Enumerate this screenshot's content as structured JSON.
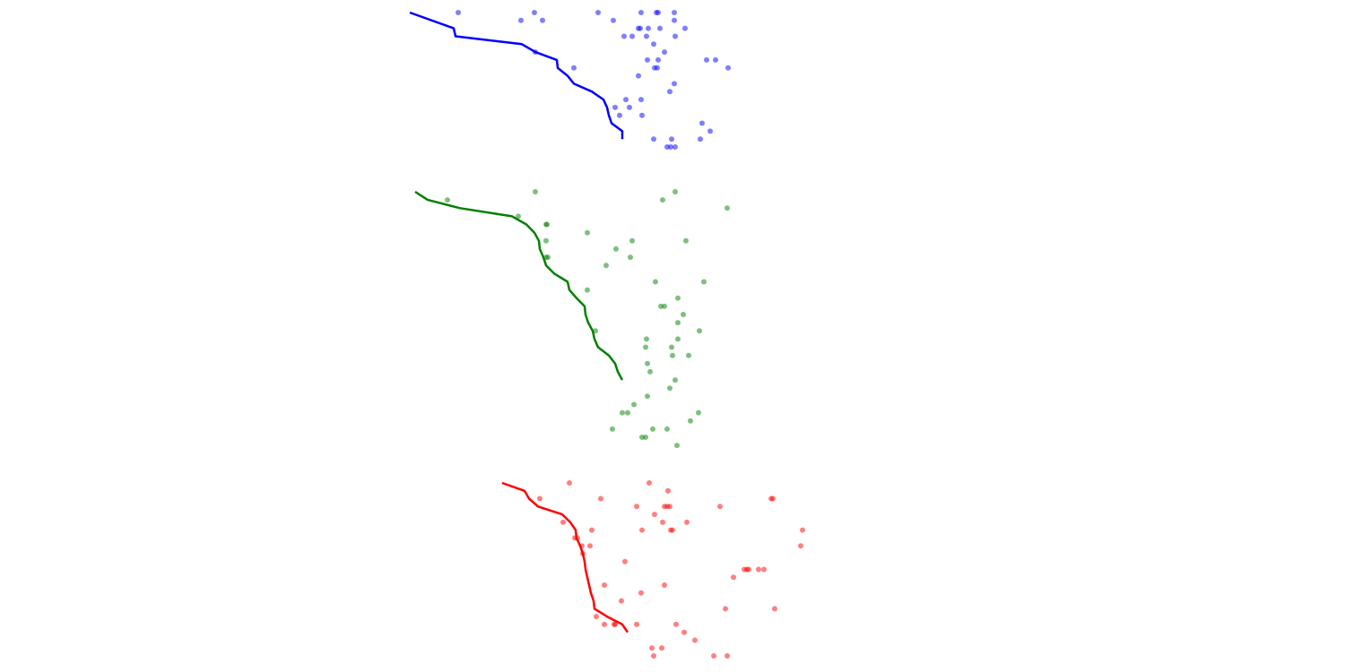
{
  "chart_data": [
    {
      "type": "scatter",
      "color": "#0000ff",
      "axes": "none",
      "grid": false,
      "xlim": [
        457,
        812
      ],
      "ylim": [
        0,
        17
      ],
      "line": [
        [
          457,
          0
        ],
        [
          506,
          2
        ],
        [
          508,
          3
        ],
        [
          582,
          4
        ],
        [
          597,
          5
        ],
        [
          621,
          6
        ],
        [
          622,
          7
        ],
        [
          633,
          8
        ],
        [
          640,
          9
        ],
        [
          660,
          10
        ],
        [
          673,
          11
        ],
        [
          677,
          12
        ],
        [
          679,
          13
        ],
        [
          682,
          14
        ],
        [
          694,
          15
        ],
        [
          694,
          16
        ]
      ],
      "points": [
        [
          511,
          0
        ],
        [
          596,
          0
        ],
        [
          667,
          0
        ],
        [
          715,
          0
        ],
        [
          732,
          0
        ],
        [
          734,
          0
        ],
        [
          752,
          0
        ],
        [
          581,
          1
        ],
        [
          605,
          1
        ],
        [
          684,
          1
        ],
        [
          752,
          1
        ],
        [
          712,
          2
        ],
        [
          714,
          2
        ],
        [
          723,
          2
        ],
        [
          736,
          2
        ],
        [
          764,
          2
        ],
        [
          696,
          3
        ],
        [
          705,
          3
        ],
        [
          721,
          3
        ],
        [
          753,
          3
        ],
        [
          729,
          4
        ],
        [
          597,
          5
        ],
        [
          741,
          5
        ],
        [
          722,
          6
        ],
        [
          734,
          6
        ],
        [
          788,
          6
        ],
        [
          798,
          6
        ],
        [
          640,
          7
        ],
        [
          730,
          7
        ],
        [
          733,
          7
        ],
        [
          812,
          7
        ],
        [
          712,
          8
        ],
        [
          752,
          9
        ],
        [
          747,
          10
        ],
        [
          698,
          11
        ],
        [
          715,
          11
        ],
        [
          686,
          12
        ],
        [
          702,
          12
        ],
        [
          691,
          13
        ],
        [
          716,
          13
        ],
        [
          783,
          14
        ],
        [
          792,
          15
        ],
        [
          729,
          16
        ],
        [
          749,
          16
        ],
        [
          781,
          16
        ],
        [
          744,
          17
        ],
        [
          748,
          17
        ],
        [
          753,
          17
        ]
      ]
    },
    {
      "type": "scatter",
      "color": "#008000",
      "axes": "none",
      "grid": false,
      "xlim": [
        463,
        811
      ],
      "ylim": [
        0,
        30
      ],
      "line": [
        [
          463,
          0
        ],
        [
          477,
          1
        ],
        [
          513,
          2
        ],
        [
          571,
          3
        ],
        [
          587,
          4
        ],
        [
          596,
          5
        ],
        [
          601,
          6
        ],
        [
          602,
          7
        ],
        [
          606,
          8
        ],
        [
          609,
          9
        ],
        [
          618,
          10
        ],
        [
          633,
          11
        ],
        [
          635,
          12
        ],
        [
          643,
          13
        ],
        [
          652,
          14
        ],
        [
          653,
          15
        ],
        [
          656,
          16
        ],
        [
          661,
          17
        ],
        [
          663,
          18
        ],
        [
          667,
          19
        ],
        [
          679,
          20
        ],
        [
          686,
          21
        ],
        [
          689,
          22
        ],
        [
          694,
          23
        ]
      ],
      "points": [
        [
          597,
          0
        ],
        [
          753,
          0
        ],
        [
          499,
          1
        ],
        [
          739,
          1
        ],
        [
          811,
          2
        ],
        [
          578,
          3
        ],
        [
          609,
          4
        ],
        [
          610,
          4
        ],
        [
          655,
          5
        ],
        [
          609,
          6
        ],
        [
          705,
          6
        ],
        [
          765,
          6
        ],
        [
          687,
          7
        ],
        [
          609,
          8
        ],
        [
          611,
          8
        ],
        [
          703,
          8
        ],
        [
          676,
          9
        ],
        [
          731,
          11
        ],
        [
          785,
          11
        ],
        [
          655,
          12
        ],
        [
          756,
          13
        ],
        [
          737,
          14
        ],
        [
          741,
          14
        ],
        [
          762,
          15
        ],
        [
          756,
          16
        ],
        [
          664,
          17
        ],
        [
          780,
          17
        ],
        [
          721,
          18
        ],
        [
          756,
          18
        ],
        [
          720,
          19
        ],
        [
          749,
          19
        ],
        [
          750,
          20
        ],
        [
          768,
          20
        ],
        [
          722,
          21
        ],
        [
          725,
          22
        ],
        [
          753,
          23
        ],
        [
          747,
          24
        ],
        [
          722,
          25
        ],
        [
          707,
          26
        ],
        [
          694,
          27
        ],
        [
          700,
          27
        ],
        [
          779,
          27
        ],
        [
          770,
          28
        ],
        [
          683,
          29
        ],
        [
          728,
          29
        ],
        [
          744,
          29
        ],
        [
          716,
          30
        ],
        [
          720,
          30
        ],
        [
          755,
          31
        ]
      ]
    },
    {
      "type": "scatter",
      "color": "#ff0000",
      "axes": "none",
      "grid": false,
      "xlim": [
        560,
        895
      ],
      "ylim": [
        0,
        22
      ],
      "line": [
        [
          560,
          0
        ],
        [
          585,
          1
        ],
        [
          590,
          2
        ],
        [
          600,
          3
        ],
        [
          627,
          4
        ],
        [
          636,
          5
        ],
        [
          642,
          6
        ],
        [
          643,
          7
        ],
        [
          647,
          8
        ],
        [
          650,
          9
        ],
        [
          652,
          10
        ],
        [
          653,
          11
        ],
        [
          655,
          12
        ],
        [
          657,
          13
        ],
        [
          659,
          14
        ],
        [
          662,
          15
        ],
        [
          663,
          16
        ],
        [
          677,
          17
        ],
        [
          694,
          18
        ],
        [
          700,
          19
        ]
      ],
      "points": [
        [
          635,
          0
        ],
        [
          724,
          0
        ],
        [
          745,
          1
        ],
        [
          602,
          2
        ],
        [
          670,
          2
        ],
        [
          860,
          2
        ],
        [
          862,
          2
        ],
        [
          710,
          3
        ],
        [
          741,
          3
        ],
        [
          744,
          3
        ],
        [
          747,
          3
        ],
        [
          803,
          3
        ],
        [
          730,
          4
        ],
        [
          628,
          5
        ],
        [
          739,
          5
        ],
        [
          766,
          5
        ],
        [
          660,
          6
        ],
        [
          716,
          6
        ],
        [
          748,
          6
        ],
        [
          750,
          6
        ],
        [
          895,
          6
        ],
        [
          641,
          7
        ],
        [
          644,
          7
        ],
        [
          649,
          8
        ],
        [
          658,
          8
        ],
        [
          893,
          8
        ],
        [
          650,
          9
        ],
        [
          697,
          10
        ],
        [
          830,
          11
        ],
        [
          833,
          11
        ],
        [
          835,
          11
        ],
        [
          846,
          11
        ],
        [
          852,
          11
        ],
        [
          818,
          12
        ],
        [
          674,
          13
        ],
        [
          741,
          13
        ],
        [
          715,
          14
        ],
        [
          693,
          15
        ],
        [
          809,
          16
        ],
        [
          864,
          16
        ],
        [
          665,
          17
        ],
        [
          674,
          18
        ],
        [
          685,
          18
        ],
        [
          686,
          18
        ],
        [
          710,
          18
        ],
        [
          754,
          18
        ],
        [
          763,
          19
        ],
        [
          775,
          20
        ],
        [
          727,
          21
        ],
        [
          738,
          21
        ],
        [
          729,
          22
        ],
        [
          796,
          22
        ],
        [
          811,
          22
        ]
      ]
    }
  ]
}
